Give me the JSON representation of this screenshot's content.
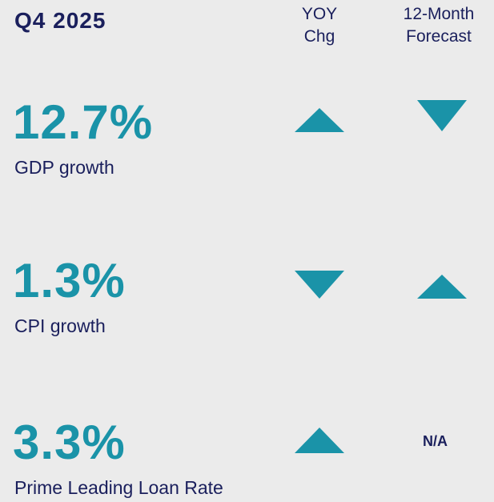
{
  "header": {
    "title": "Q4 2025",
    "columns": [
      [
        "YOY",
        "Chg"
      ],
      [
        "12-Month",
        "Forecast"
      ]
    ]
  },
  "rows": [
    {
      "value": "12.7%",
      "label": "GDP growth"
    },
    {
      "value": "1.3%",
      "label": "CPI growth"
    },
    {
      "value": "3.3%",
      "label": "Prime Leading Loan Rate",
      "forecast": "N/A"
    }
  ]
}
